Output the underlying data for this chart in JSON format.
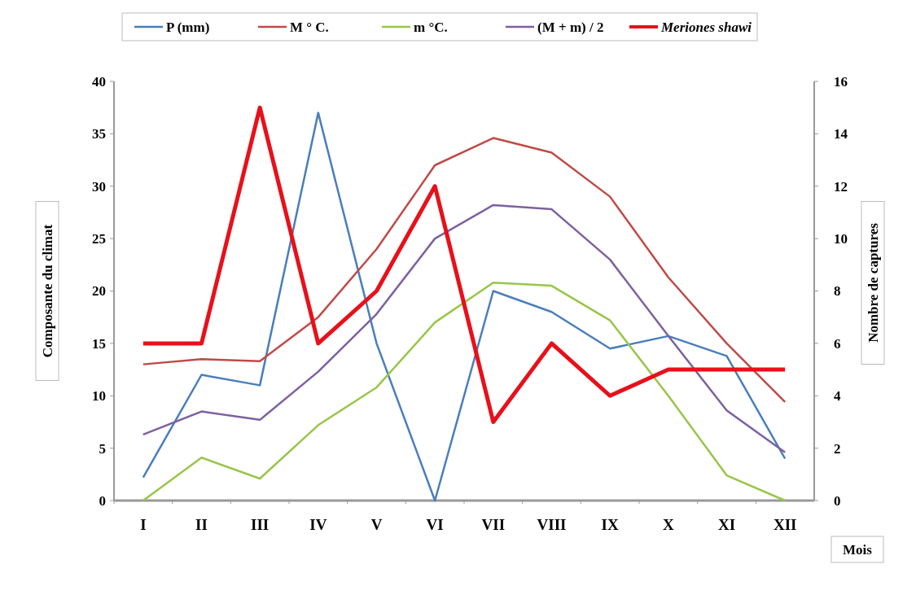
{
  "chart_data": {
    "type": "line",
    "xlabel": "Mois",
    "ylabel": "Composante du climat",
    "y2label": "Nombre de captures",
    "categories": [
      "I",
      "II",
      "III",
      "IV",
      "V",
      "VI",
      "VII",
      "VIII",
      "IX",
      "X",
      "XI",
      "XII"
    ],
    "series": [
      {
        "name": "P (mm)",
        "color": "#4a7ebb",
        "values": [
          2.2,
          12,
          11,
          37,
          15,
          0,
          20,
          18,
          14.5,
          15.7,
          13.8,
          4
        ]
      },
      {
        "name": "M ° C.",
        "color": "#be4b48",
        "values": [
          13,
          13.5,
          13.3,
          17.5,
          24,
          32,
          34.6,
          33.2,
          29,
          21.3,
          15,
          9.4
        ]
      },
      {
        "name": "m °C.",
        "color": "#98c64a",
        "values": [
          0,
          4.1,
          2.1,
          7.2,
          10.8,
          17,
          20.8,
          20.5,
          17.2,
          10,
          2.4,
          0
        ]
      },
      {
        "name": "(M + m) / 2",
        "color": "#7d60a0",
        "values": [
          6.3,
          8.5,
          7.7,
          12.3,
          17.8,
          25,
          28.2,
          27.8,
          23,
          15.7,
          8.6,
          4.6
        ]
      },
      {
        "name": "Meriones shawi",
        "color": "#e8101a",
        "axis": "y2",
        "values": [
          6,
          6,
          15,
          6,
          8,
          12,
          3,
          6,
          4,
          5,
          5,
          5
        ]
      }
    ],
    "ylim": [
      0,
      40
    ],
    "yticks": [
      0,
      5,
      10,
      15,
      20,
      25,
      30,
      35,
      40
    ],
    "y2lim": [
      0,
      16
    ],
    "y2ticks": [
      0,
      2,
      4,
      6,
      8,
      10,
      12,
      14,
      16
    ],
    "legend": "top",
    "grid": false,
    "marker": "none",
    "line_style": "solid"
  }
}
